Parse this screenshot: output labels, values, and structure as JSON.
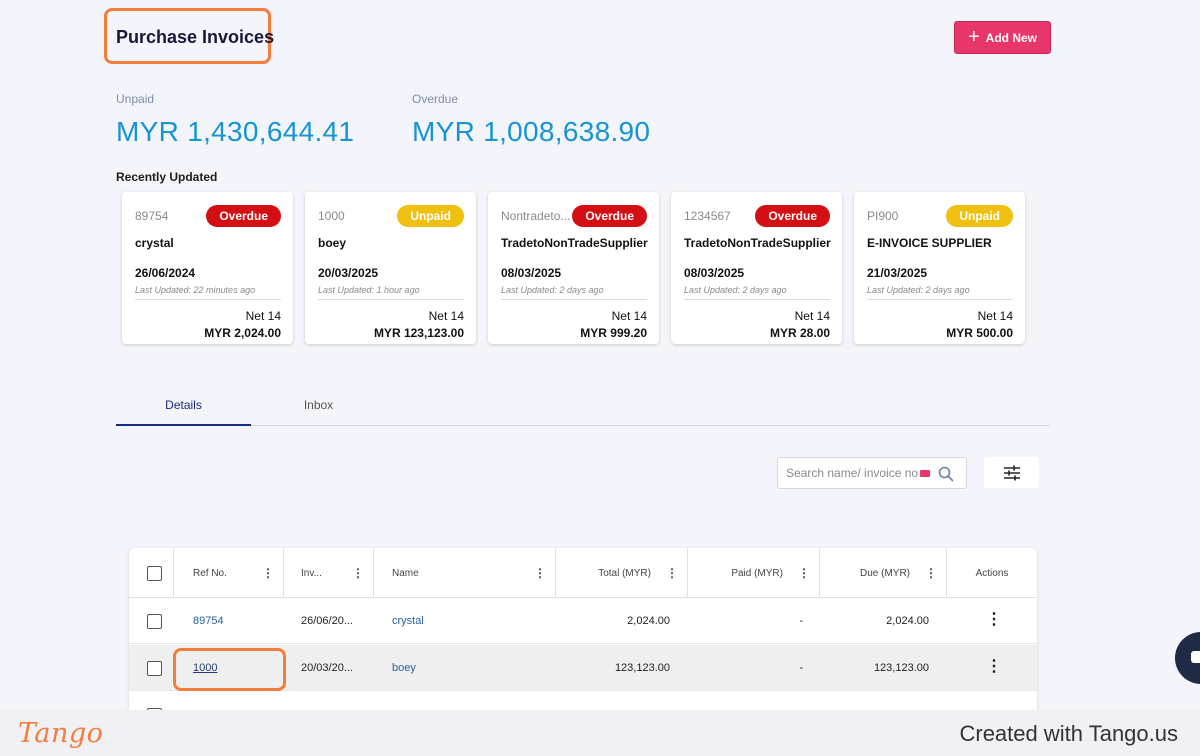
{
  "header": {
    "title": "Purchase Invoices",
    "add_button_label": "Add New"
  },
  "stats": {
    "unpaid_label": "Unpaid",
    "unpaid_value": "MYR 1,430,644.41",
    "overdue_label": "Overdue",
    "overdue_value": "MYR 1,008,638.90"
  },
  "recent": {
    "title": "Recently Updated",
    "cards": [
      {
        "ref": "89754",
        "status": "Overdue",
        "name": "crystal",
        "date": "26/06/2024",
        "updated": "Last Updated: 22 minutes ago",
        "term": "Net 14",
        "amount": "MYR 2,024.00"
      },
      {
        "ref": "1000",
        "status": "Unpaid",
        "name": "boey",
        "date": "20/03/2025",
        "updated": "Last Updated: 1 hour ago",
        "term": "Net 14",
        "amount": "MYR 123,123.00"
      },
      {
        "ref": "Nontradeto...",
        "status": "Overdue",
        "name": "TradetoNonTradeSupplier",
        "date": "08/03/2025",
        "updated": "Last Updated: 2 days ago",
        "term": "Net 14",
        "amount": "MYR 999.20"
      },
      {
        "ref": "1234567",
        "status": "Overdue",
        "name": "TradetoNonTradeSupplier",
        "date": "08/03/2025",
        "updated": "Last Updated: 2 days ago",
        "term": "Net 14",
        "amount": "MYR 28.00"
      },
      {
        "ref": "PI900",
        "status": "Unpaid",
        "name": "E-INVOICE SUPPLIER",
        "date": "21/03/2025",
        "updated": "Last Updated: 2 days ago",
        "term": "Net 14",
        "amount": "MYR 500.00"
      }
    ]
  },
  "tabs": [
    {
      "label": "Details",
      "active": true
    },
    {
      "label": "Inbox",
      "active": false
    }
  ],
  "search": {
    "placeholder": "Search name/ invoice no."
  },
  "table": {
    "columns": [
      "Ref No.",
      "Inv...",
      "Name",
      "Total (MYR)",
      "Paid (MYR)",
      "Due (MYR)",
      "Actions"
    ],
    "rows": [
      {
        "ref": "89754",
        "inv": "26/06/20...",
        "name": "crystal",
        "total": "2,024.00",
        "paid": "-",
        "due": "2,024.00"
      },
      {
        "ref": "1000",
        "inv": "20/03/20...",
        "name": "boey",
        "total": "123,123.00",
        "paid": "-",
        "due": "123,123.00"
      }
    ]
  },
  "footer": {
    "logo": "Tango",
    "text": "Created with Tango.us"
  },
  "colors": {
    "accent": "#e8366a",
    "stat_blue": "#1795d2",
    "overdue": "#d40f14",
    "unpaid": "#f0c010",
    "highlight": "#f57c3b"
  }
}
